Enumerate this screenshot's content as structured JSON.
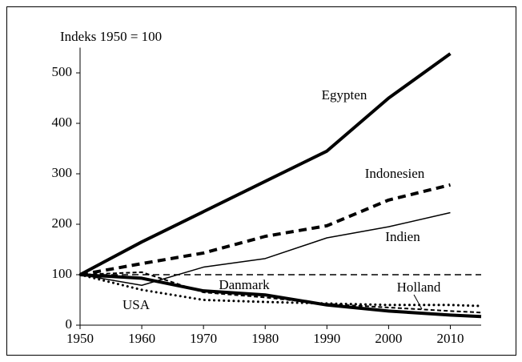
{
  "chart_data": {
    "type": "line",
    "ylabel": "Indeks 1950 = 100",
    "x": [
      1950,
      1960,
      1970,
      1980,
      1990,
      2000,
      2010,
      2015
    ],
    "xlim": [
      1950,
      2015
    ],
    "xticks": [
      1950,
      1960,
      1970,
      1980,
      1990,
      2000,
      2010
    ],
    "ylim": [
      0,
      550
    ],
    "yticks": [
      0,
      100,
      200,
      300,
      400,
      500
    ],
    "reference_line": 100,
    "series": [
      {
        "name": "Egypten",
        "color": "#000000",
        "width": 4,
        "dash": "solid",
        "values": [
          100,
          165,
          225,
          285,
          345,
          450,
          538,
          null
        ]
      },
      {
        "name": "Indonesien",
        "color": "#000000",
        "width": 4,
        "dash": "dashed",
        "values": [
          100,
          122,
          143,
          176,
          197,
          248,
          278,
          null
        ]
      },
      {
        "name": "Indien",
        "color": "#000000",
        "width": 1.5,
        "dash": "solid",
        "values": [
          100,
          79,
          115,
          132,
          173,
          195,
          223,
          null
        ]
      },
      {
        "name": "Danmark",
        "color": "#000000",
        "width": 4,
        "dash": "solid",
        "values": [
          100,
          93,
          68,
          60,
          40,
          28,
          20,
          17
        ]
      },
      {
        "name": "Holland",
        "color": "#000000",
        "width": 2,
        "dash": "dashed",
        "values": [
          100,
          105,
          65,
          55,
          42,
          35,
          28,
          25
        ]
      },
      {
        "name": "USA",
        "color": "#000000",
        "width": 3,
        "dash": "dotted",
        "values": [
          100,
          70,
          50,
          46,
          43,
          40,
          40,
          38
        ]
      }
    ]
  }
}
